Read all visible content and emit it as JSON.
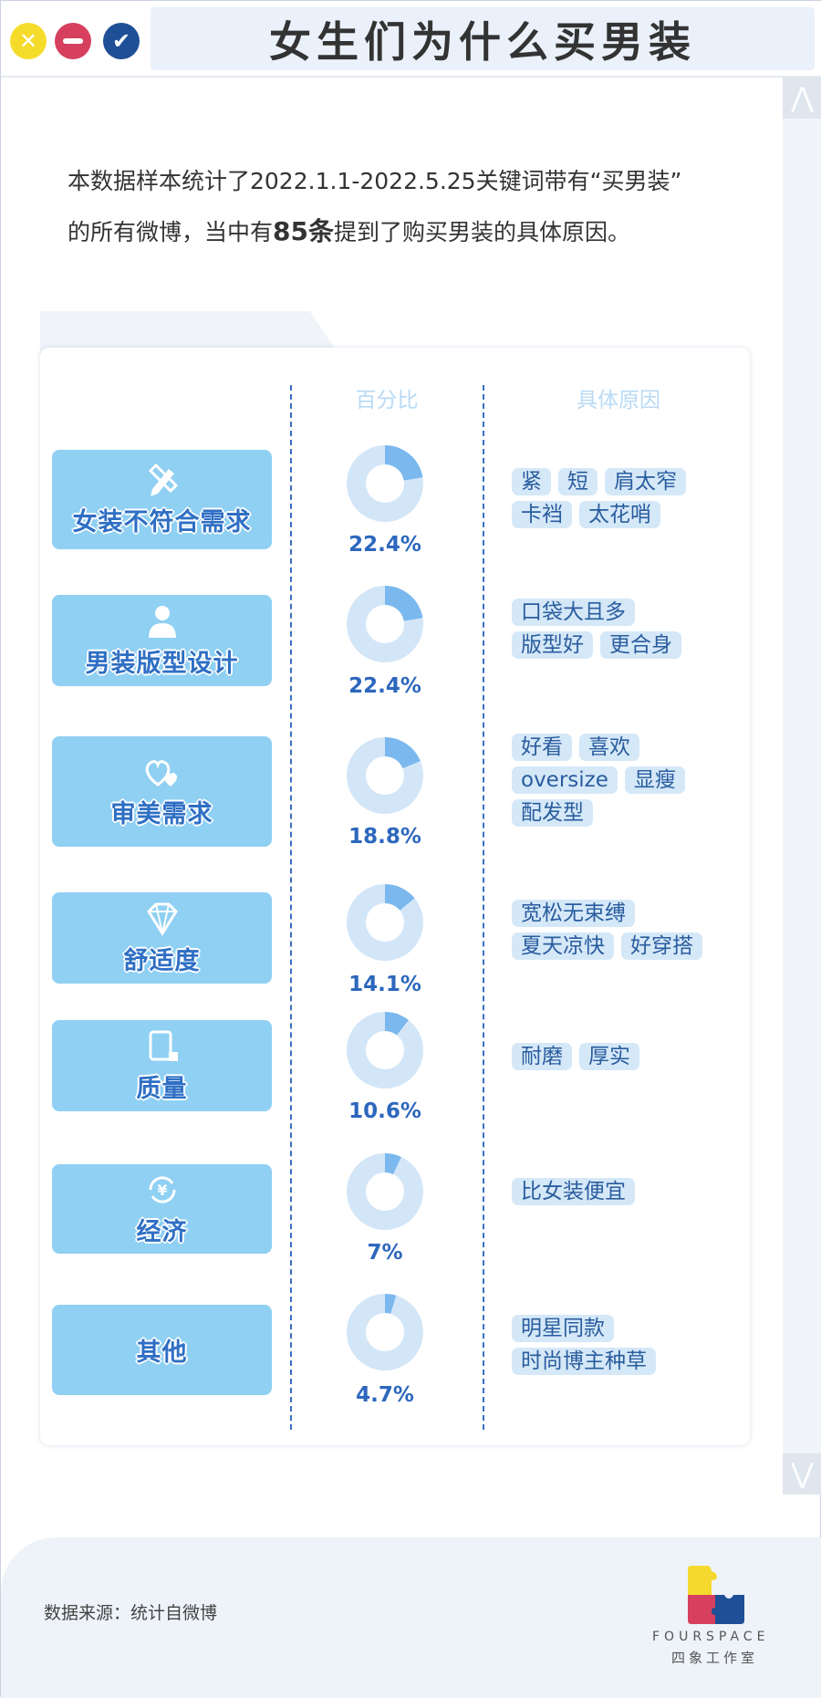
{
  "window": {
    "title": "女生们为什么买男装",
    "buttons": [
      "close",
      "minimize",
      "confirm"
    ],
    "colors": {
      "close": "#f5dc2a",
      "minimize": "#d6405e",
      "confirm": "#1f4f96"
    }
  },
  "intro": {
    "line1": "本数据样本统计了2022.1.1-2022.5.25关键词带有“买男装”",
    "line2_pre": "的所有微博，当中有",
    "line2_bold": "85条",
    "line2_post": "提到了购买男装的具体原因。"
  },
  "table": {
    "headers": {
      "percent": "百分比",
      "reasons": "具体原因"
    },
    "colors": {
      "label_bg": "#8fd0f3",
      "ring": "#d3e6f8",
      "ring_fill": "#7ab8ee",
      "pct_text": "#2d67bd",
      "tag_bg": "#d5e8f8"
    },
    "rows": [
      {
        "label": "女装不符合需求",
        "icon": "pencil-ruler-icon",
        "percent": "22.4%",
        "value": 22.4,
        "tags": [
          [
            "紧",
            "短",
            "肩太窄"
          ],
          [
            "卡裆",
            "太花哨"
          ]
        ]
      },
      {
        "label": "男装版型设计",
        "icon": "person-icon",
        "percent": "22.4%",
        "value": 22.4,
        "tags": [
          [
            "口袋大且多"
          ],
          [
            "版型好",
            "更合身"
          ]
        ]
      },
      {
        "label": "审美需求",
        "icon": "hearts-icon",
        "percent": "18.8%",
        "value": 18.8,
        "tags": [
          [
            "好看",
            "喜欢"
          ],
          [
            "oversize",
            "显瘦"
          ],
          [
            "配发型"
          ]
        ]
      },
      {
        "label": "舒适度",
        "icon": "diamond-icon",
        "percent": "14.1%",
        "value": 14.1,
        "tags": [
          [
            "宽松无束缚"
          ],
          [
            "夏天凉快",
            "好穿搭"
          ]
        ]
      },
      {
        "label": "质量",
        "icon": "clipboard-icon",
        "percent": "10.6%",
        "value": 10.6,
        "tags": [
          [
            "耐磨",
            "厚实"
          ]
        ]
      },
      {
        "label": "经济",
        "icon": "yen-cycle-icon",
        "percent": "7%",
        "value": 7,
        "tags": [
          [
            "比女装便宜"
          ]
        ]
      },
      {
        "label": "其他",
        "icon": "",
        "percent": "4.7%",
        "value": 4.7,
        "tags": [
          [
            "明星同款"
          ],
          [
            "时尚博主种草"
          ]
        ]
      }
    ]
  },
  "footer": {
    "source": "数据来源：统计自微博",
    "brand": "FOURSPACE",
    "brand_cn": "四象工作室"
  }
}
